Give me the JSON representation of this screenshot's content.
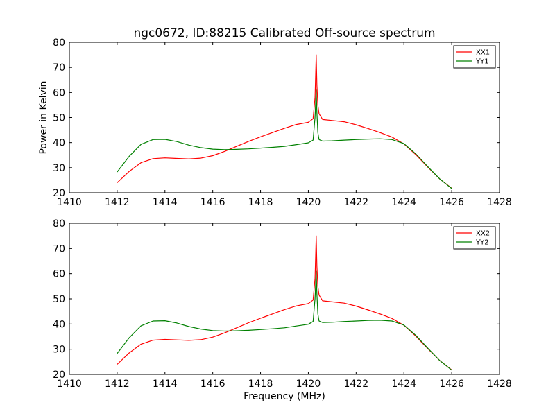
{
  "chart_data": [
    {
      "type": "line",
      "title": "ngc0672, ID:88215 Calibrated Off-source spectrum",
      "xlabel": "",
      "ylabel": "Power in Kelvin",
      "xlim": [
        1410,
        1428
      ],
      "ylim": [
        20,
        80
      ],
      "xticks": [
        "1410",
        "1412",
        "1414",
        "1416",
        "1418",
        "1420",
        "1422",
        "1424",
        "1426",
        "1428"
      ],
      "yticks": [
        "20",
        "30",
        "40",
        "50",
        "60",
        "70",
        "80"
      ],
      "legend_position": "top-right",
      "series": [
        {
          "name": "XX1",
          "color": "#ff0000",
          "x": [
            1412.0,
            1412.5,
            1413.0,
            1413.5,
            1414.0,
            1414.5,
            1415.0,
            1415.5,
            1416.0,
            1416.5,
            1417.0,
            1417.5,
            1418.0,
            1418.5,
            1419.0,
            1419.5,
            1420.0,
            1420.2,
            1420.28,
            1420.33,
            1420.36,
            1420.4,
            1420.45,
            1420.6,
            1421.0,
            1421.5,
            1422.0,
            1422.5,
            1423.0,
            1423.5,
            1424.0,
            1424.5,
            1425.0,
            1425.5,
            1426.0
          ],
          "y": [
            24.0,
            28.5,
            32.0,
            33.6,
            33.9,
            33.7,
            33.5,
            33.8,
            34.8,
            36.5,
            38.5,
            40.5,
            42.3,
            44.0,
            45.7,
            47.2,
            48.1,
            49.5,
            58.0,
            75.0,
            63.0,
            55.0,
            51.5,
            49.2,
            48.8,
            48.3,
            47.1,
            45.6,
            44.0,
            42.2,
            39.5,
            35.2,
            30.2,
            25.5,
            21.8
          ]
        },
        {
          "name": "YY1",
          "color": "#008000",
          "x": [
            1412.0,
            1412.5,
            1413.0,
            1413.5,
            1414.0,
            1414.5,
            1415.0,
            1415.5,
            1416.0,
            1416.5,
            1417.0,
            1417.5,
            1418.0,
            1418.5,
            1419.0,
            1419.5,
            1420.0,
            1420.2,
            1420.28,
            1420.33,
            1420.36,
            1420.4,
            1420.45,
            1420.6,
            1421.0,
            1421.5,
            1422.0,
            1422.5,
            1423.0,
            1423.5,
            1424.0,
            1424.5,
            1425.0,
            1425.5,
            1426.0
          ],
          "y": [
            28.3,
            34.5,
            39.3,
            41.2,
            41.3,
            40.4,
            39.0,
            38.0,
            37.4,
            37.2,
            37.3,
            37.5,
            37.8,
            38.1,
            38.5,
            39.2,
            39.9,
            41.0,
            50.0,
            61.0,
            52.0,
            44.0,
            41.2,
            40.6,
            40.7,
            41.0,
            41.2,
            41.4,
            41.5,
            41.2,
            39.6,
            35.5,
            30.4,
            25.5,
            21.7
          ]
        }
      ]
    },
    {
      "type": "line",
      "title": "",
      "xlabel": "Frequency (MHz)",
      "ylabel": "",
      "xlim": [
        1410,
        1428
      ],
      "ylim": [
        20,
        80
      ],
      "xticks": [
        "1410",
        "1412",
        "1414",
        "1416",
        "1418",
        "1420",
        "1422",
        "1424",
        "1426",
        "1428"
      ],
      "yticks": [
        "20",
        "30",
        "40",
        "50",
        "60",
        "70",
        "80"
      ],
      "legend_position": "top-right",
      "series": [
        {
          "name": "XX2",
          "color": "#ff0000",
          "x": [
            1412.0,
            1412.5,
            1413.0,
            1413.5,
            1414.0,
            1414.5,
            1415.0,
            1415.5,
            1416.0,
            1416.5,
            1417.0,
            1417.5,
            1418.0,
            1418.5,
            1419.0,
            1419.5,
            1420.0,
            1420.2,
            1420.28,
            1420.33,
            1420.36,
            1420.4,
            1420.45,
            1420.6,
            1421.0,
            1421.5,
            1422.0,
            1422.5,
            1423.0,
            1423.5,
            1424.0,
            1424.5,
            1425.0,
            1425.5,
            1426.0
          ],
          "y": [
            24.0,
            28.5,
            32.0,
            33.6,
            33.9,
            33.7,
            33.5,
            33.8,
            34.8,
            36.5,
            38.5,
            40.5,
            42.3,
            44.0,
            45.7,
            47.2,
            48.1,
            49.5,
            58.0,
            75.0,
            63.0,
            55.0,
            51.5,
            49.2,
            48.8,
            48.3,
            47.1,
            45.6,
            44.0,
            42.2,
            39.5,
            35.2,
            30.2,
            25.5,
            21.8
          ]
        },
        {
          "name": "YY2",
          "color": "#008000",
          "x": [
            1412.0,
            1412.5,
            1413.0,
            1413.5,
            1414.0,
            1414.5,
            1415.0,
            1415.5,
            1416.0,
            1416.5,
            1417.0,
            1417.5,
            1418.0,
            1418.5,
            1419.0,
            1419.5,
            1420.0,
            1420.2,
            1420.28,
            1420.33,
            1420.36,
            1420.4,
            1420.45,
            1420.6,
            1421.0,
            1421.5,
            1422.0,
            1422.5,
            1423.0,
            1423.5,
            1424.0,
            1424.5,
            1425.0,
            1425.5,
            1426.0
          ],
          "y": [
            28.3,
            34.5,
            39.3,
            41.2,
            41.3,
            40.4,
            39.0,
            38.0,
            37.4,
            37.2,
            37.3,
            37.5,
            37.8,
            38.1,
            38.5,
            39.2,
            39.9,
            41.0,
            50.0,
            61.0,
            52.0,
            44.0,
            41.2,
            40.6,
            40.7,
            41.0,
            41.2,
            41.4,
            41.5,
            41.2,
            39.6,
            35.5,
            30.4,
            25.5,
            21.7
          ]
        }
      ]
    }
  ]
}
